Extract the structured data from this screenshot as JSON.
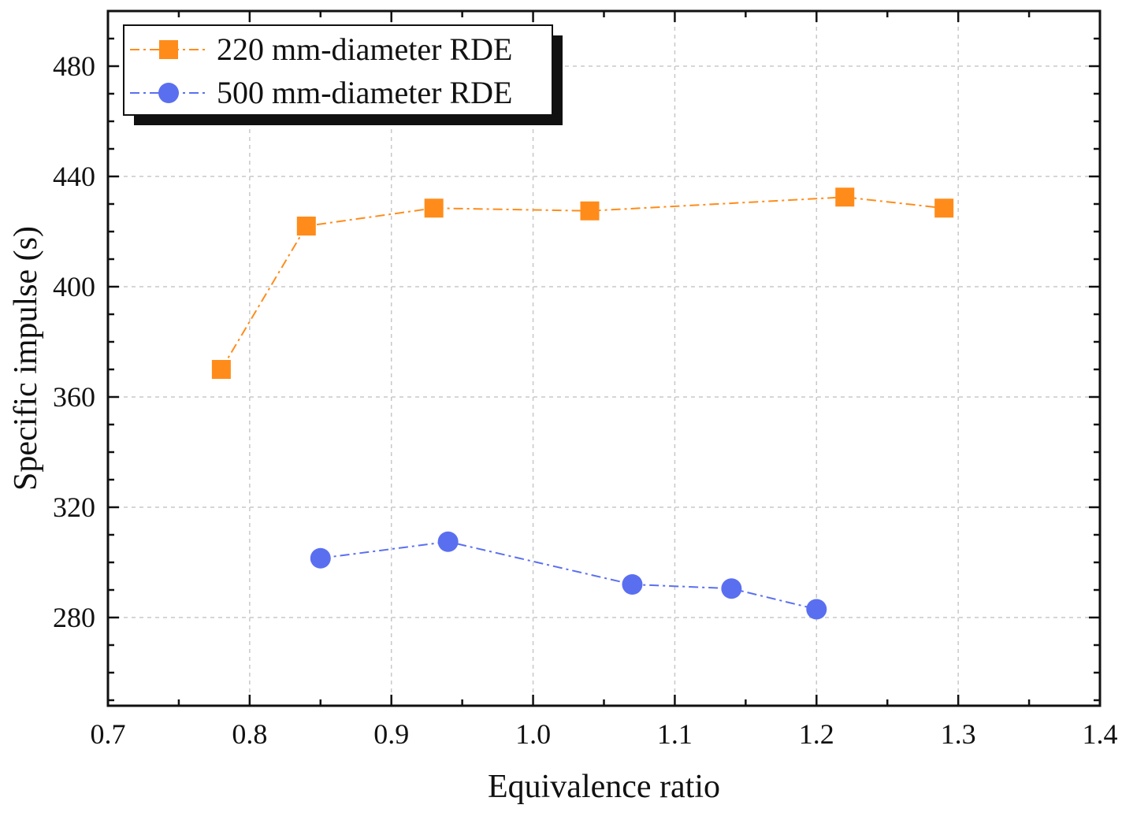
{
  "chart_data": {
    "type": "line",
    "xlabel": "Equivalence ratio",
    "ylabel": "Specific impulse (s)",
    "xlim": [
      0.7,
      1.4
    ],
    "ylim": [
      248,
      500
    ],
    "xticks": [
      0.7,
      0.8,
      0.9,
      1.0,
      1.1,
      1.2,
      1.3,
      1.4
    ],
    "xtick_labels": [
      "0.7",
      "0.8",
      "0.9",
      "1.0",
      "1.1",
      "1.2",
      "1.3",
      "1.4"
    ],
    "yticks": [
      280,
      320,
      360,
      400,
      440,
      480
    ],
    "ytick_labels": [
      "280",
      "320",
      "360",
      "400",
      "440",
      "480"
    ],
    "grid": true,
    "legend_position": "top-left",
    "series": [
      {
        "name": "220 mm-diameter RDE",
        "marker": "square",
        "line_style": "dash-dot",
        "color": "#ff8c1a",
        "x": [
          0.78,
          0.84,
          0.93,
          1.04,
          1.22,
          1.29
        ],
        "y": [
          370,
          422,
          428.5,
          427.5,
          432.5,
          428.5
        ]
      },
      {
        "name": "500 mm-diameter RDE",
        "marker": "circle",
        "line_style": "dash-dot",
        "color": "#5a6ff0",
        "x": [
          0.85,
          0.94,
          1.07,
          1.14,
          1.2
        ],
        "y": [
          301.5,
          307.5,
          292,
          290.5,
          283
        ]
      }
    ]
  }
}
